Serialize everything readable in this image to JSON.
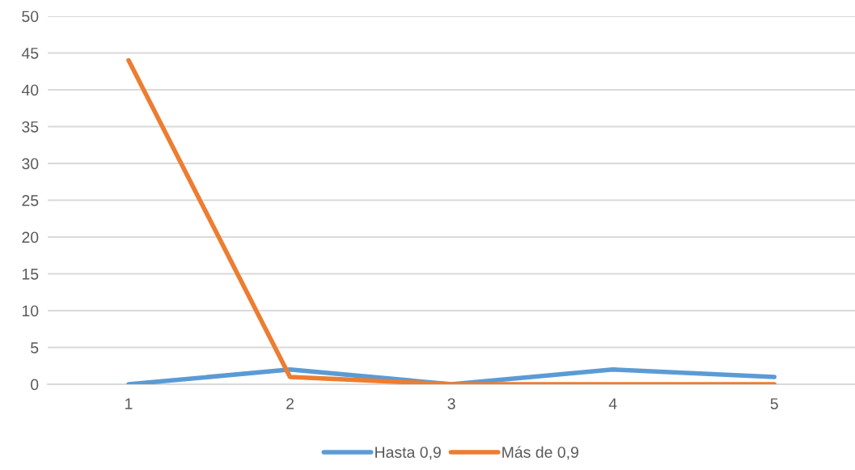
{
  "chart_data": {
    "type": "line",
    "categories": [
      "1",
      "2",
      "3",
      "4",
      "5"
    ],
    "series": [
      {
        "name": "Hasta 0,9",
        "color": "#5b9bd5",
        "values": [
          0,
          2,
          0,
          2,
          1
        ]
      },
      {
        "name": "Más de 0,9",
        "color": "#ed7d31",
        "values": [
          44,
          1,
          0,
          0,
          0
        ]
      }
    ],
    "ylim": [
      0,
      50
    ],
    "yticks": [
      0,
      5,
      10,
      15,
      20,
      25,
      30,
      35,
      40,
      45,
      50
    ],
    "grid": "y",
    "legend": "bottom",
    "marker": "none",
    "line_style": "solid"
  }
}
